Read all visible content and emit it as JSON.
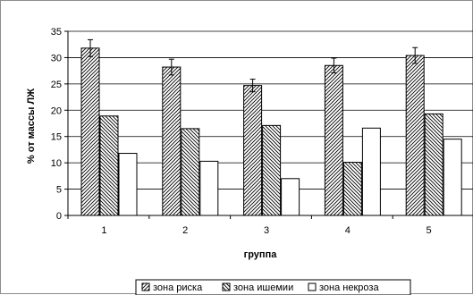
{
  "chart_data": {
    "type": "bar",
    "title": "",
    "xlabel": "группа",
    "ylabel": "% от массы ЛЖ",
    "categories": [
      "1",
      "2",
      "3",
      "4",
      "5"
    ],
    "ylim": [
      0,
      35
    ],
    "yticks": [
      0,
      5,
      10,
      15,
      20,
      25,
      30,
      35
    ],
    "grid": true,
    "legend_position": "bottom",
    "series": [
      {
        "name": "зона риска",
        "values": [
          31.8,
          28.2,
          24.7,
          28.5,
          30.4
        ],
        "error": [
          1.6,
          1.5,
          1.2,
          1.4,
          1.5
        ],
        "pattern": "hatch-right"
      },
      {
        "name": "зона ишемии",
        "values": [
          18.9,
          16.5,
          17.1,
          10.1,
          19.3
        ],
        "error": null,
        "pattern": "hatch-left"
      },
      {
        "name": "зона некроза",
        "values": [
          11.8,
          10.3,
          7.0,
          16.6,
          14.5
        ],
        "error": null,
        "pattern": "empty"
      }
    ]
  }
}
